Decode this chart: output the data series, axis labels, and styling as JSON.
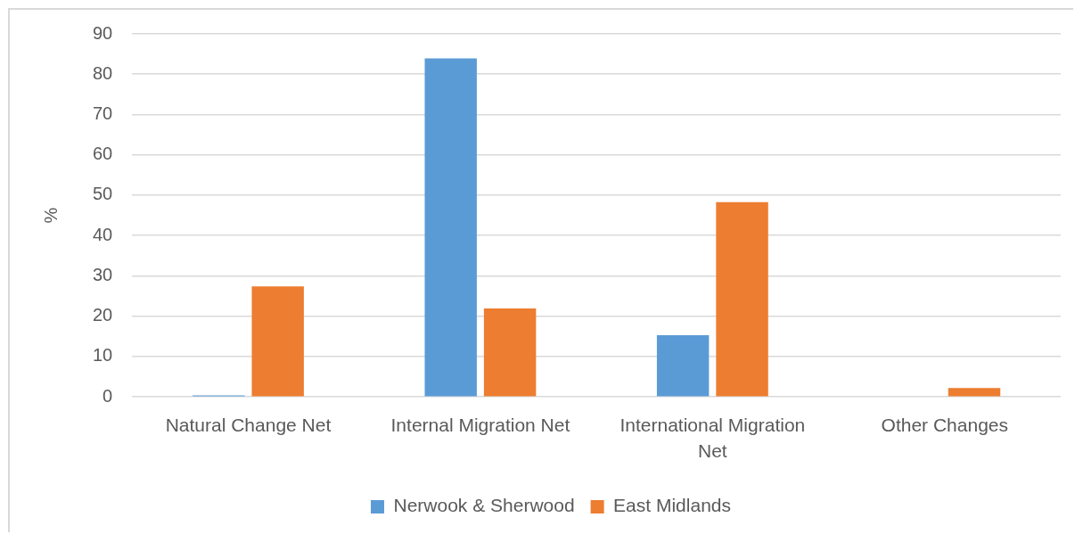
{
  "chart_data": {
    "type": "bar",
    "ylabel": "%",
    "categories": [
      "Natural Change Net",
      "Internal Migration Net",
      "International Migration Net",
      "Other Changes"
    ],
    "series": [
      {
        "name": "Nerwook & Sherwood",
        "color": "#5b9bd5",
        "values": [
          0.4,
          83.9,
          15.3,
          0
        ]
      },
      {
        "name": "East Midlands",
        "color": "#ed7d31",
        "values": [
          27.4,
          21.9,
          48.3,
          2.2
        ]
      }
    ],
    "ylim": [
      0,
      90
    ],
    "yticks": [
      0,
      10,
      20,
      30,
      40,
      50,
      60,
      70,
      80,
      90
    ],
    "grid": "y",
    "legend": "bottom"
  }
}
